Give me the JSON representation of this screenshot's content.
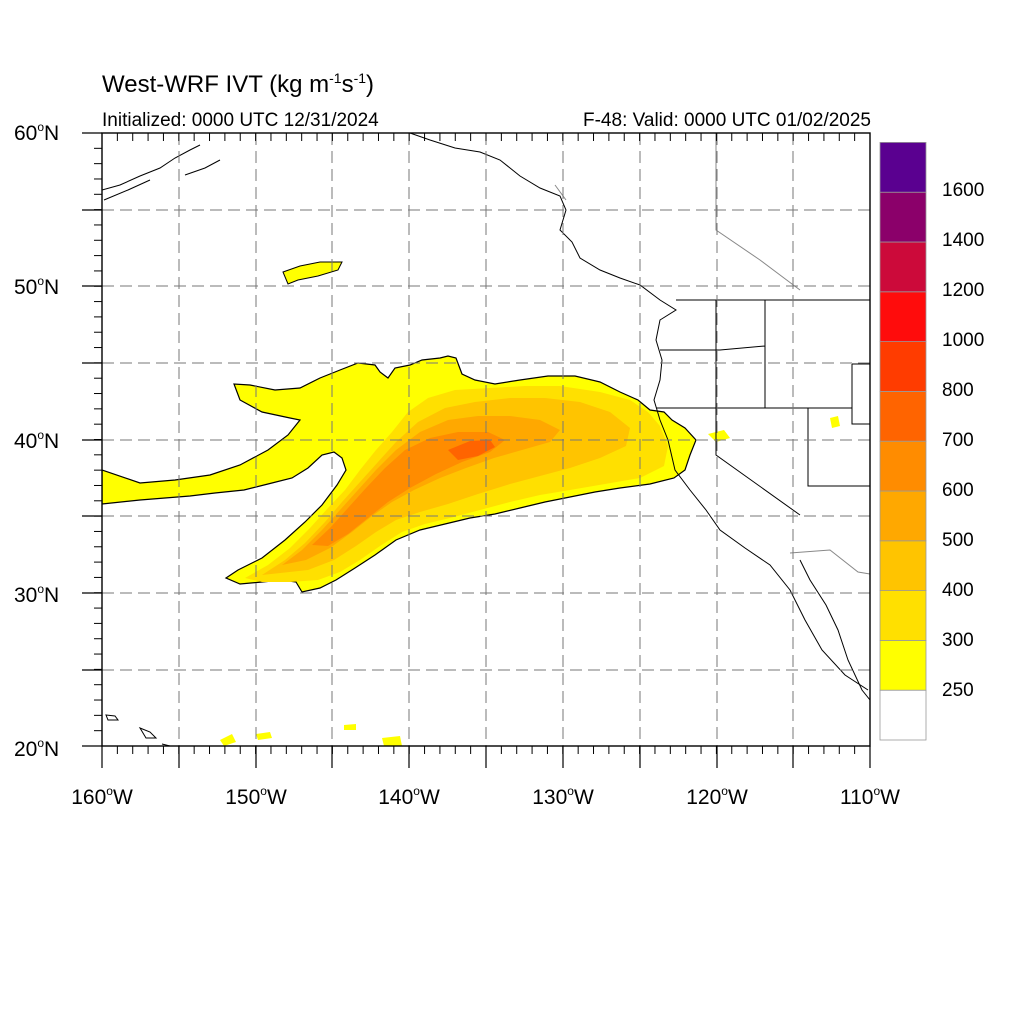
{
  "title": {
    "prefix": "West-WRF IVT (kg m",
    "sup1": "-1",
    "mid": "s",
    "sup2": "-1",
    "suffix": ")"
  },
  "subtitle_left": "Initialized: 0000 UTC 12/31/2024",
  "subtitle_right": "F-48: Valid: 0000 UTC 01/02/2025",
  "lat_labels": [
    {
      "num": "60",
      "hemi": "N"
    },
    {
      "num": "50",
      "hemi": "N"
    },
    {
      "num": "40",
      "hemi": "N"
    },
    {
      "num": "30",
      "hemi": "N"
    },
    {
      "num": "20",
      "hemi": "N"
    }
  ],
  "lon_labels": [
    {
      "num": "160",
      "hemi": "W"
    },
    {
      "num": "150",
      "hemi": "W"
    },
    {
      "num": "140",
      "hemi": "W"
    },
    {
      "num": "130",
      "hemi": "W"
    },
    {
      "num": "120",
      "hemi": "W"
    },
    {
      "num": "110",
      "hemi": "W"
    }
  ],
  "colorbar": {
    "labels": [
      "1600",
      "1400",
      "1200",
      "1000",
      "800",
      "700",
      "600",
      "500",
      "400",
      "300",
      "250"
    ],
    "colors": [
      "#ffffff",
      "#ffff00",
      "#ffe000",
      "#ffc400",
      "#ffa800",
      "#ff8c00",
      "#ff6400",
      "#ff3c00",
      "#ff0c0c",
      "#cc0a3a",
      "#8b006a",
      "#5a0090"
    ]
  },
  "colors": {
    "ivt_250": "#ffff00",
    "ivt_300": "#ffe000",
    "ivt_400": "#ffc400",
    "ivt_500": "#ffa800",
    "ivt_600": "#ff8c00",
    "ivt_700": "#ff6400",
    "coast": "#000000",
    "grid": "#777777"
  }
}
